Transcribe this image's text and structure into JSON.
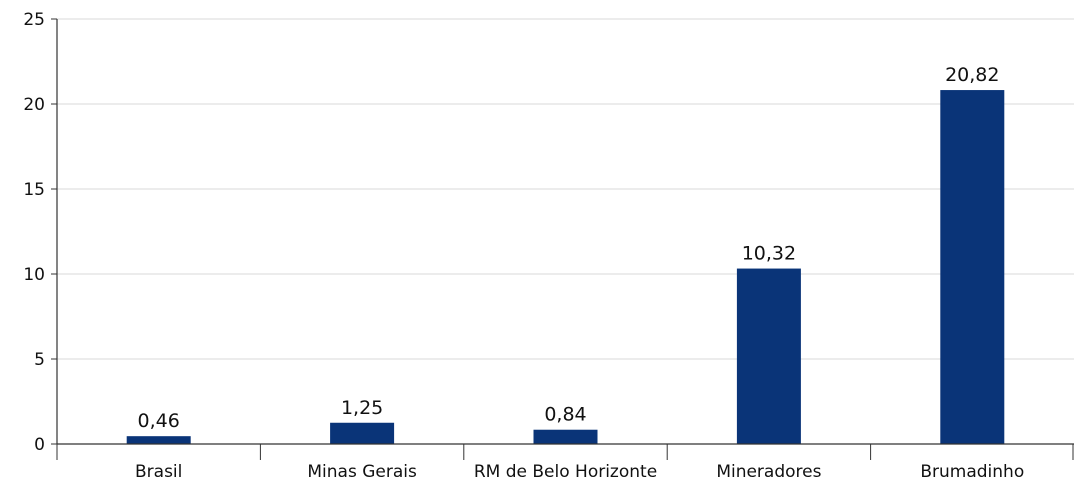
{
  "chart_data": {
    "type": "bar",
    "title": "",
    "xlabel": "",
    "ylabel": "",
    "categories": [
      "Brasil",
      "Minas Gerais",
      "RM de Belo Horizonte",
      "Mineradores",
      "Brumadinho"
    ],
    "values": [
      0.46,
      1.25,
      0.84,
      10.32,
      20.82
    ],
    "value_labels": [
      "0,46",
      "1,25",
      "0,84",
      "10,32",
      "20,82"
    ],
    "ylim": [
      0,
      25
    ],
    "yticks": [
      0,
      5,
      10,
      15,
      20,
      25
    ],
    "grid": true,
    "bar_color": "#0a3478"
  }
}
